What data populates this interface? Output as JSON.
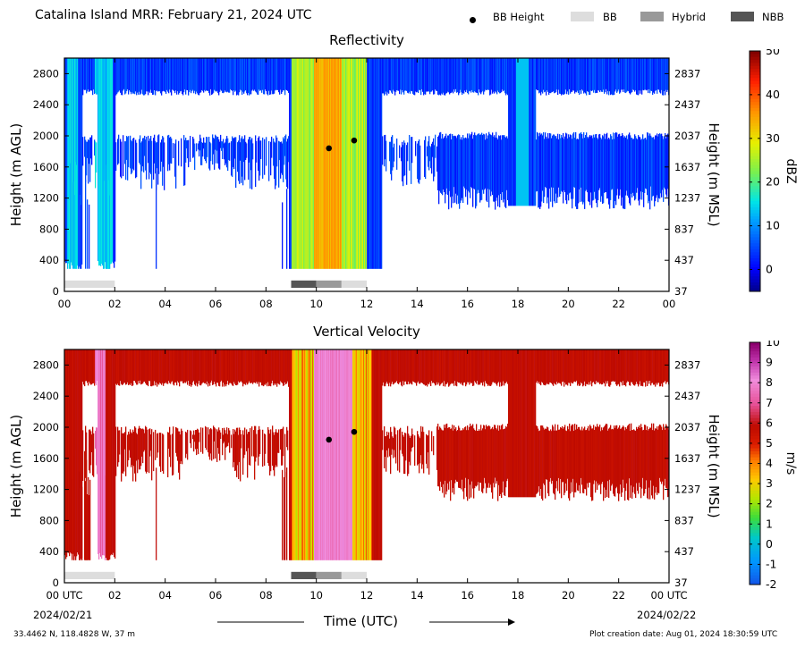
{
  "header": {
    "title": "Catalina Island MRR:  February 21, 2024 UTC",
    "legend": [
      {
        "label": "BB Height",
        "type": "dot",
        "color": "#000000"
      },
      {
        "label": "BB",
        "type": "box",
        "color": "#dddddd"
      },
      {
        "label": "Hybrid",
        "type": "box",
        "color": "#999999"
      },
      {
        "label": "NBB",
        "type": "box",
        "color": "#555555"
      }
    ]
  },
  "footer": {
    "location": "33.4462 N, 118.4828 W, 37 m",
    "creation": "Plot creation date: Aug 01, 2024 18:30:59 UTC",
    "time_label": "Time (UTC)",
    "start_date": "2024/02/21",
    "end_date": "2024/02/22"
  },
  "chart_data": [
    {
      "type": "heatmap",
      "title": "Reflectivity",
      "ylabel": "Height (m AGL)",
      "y2label": "Height (m MSL)",
      "colorbar_label": "dBZ",
      "colorbar_ticks": [
        "50",
        "40",
        "30",
        "20",
        "10",
        "0"
      ],
      "colorbar_range": [
        -5,
        50
      ],
      "xlim": [
        0,
        24
      ],
      "ylim": [
        0,
        3000
      ],
      "x_ticks": [
        "00",
        "02",
        "04",
        "06",
        "08",
        "10",
        "12",
        "14",
        "16",
        "18",
        "20",
        "22",
        "00"
      ],
      "y_ticks": [
        "0",
        "400",
        "800",
        "1200",
        "1600",
        "2000",
        "2400",
        "2800"
      ],
      "y2_ticks": [
        "37",
        "437",
        "837",
        "1237",
        "1637",
        "2037",
        "2437",
        "2837"
      ],
      "bb_height_points": [
        {
          "x": 10.5,
          "y": 1840
        },
        {
          "x": 11.5,
          "y": 1940
        }
      ],
      "bb_type_bars": [
        {
          "start": 0.0,
          "end": 2.0,
          "type": "BB"
        },
        {
          "start": 9.0,
          "end": 10.0,
          "type": "NBB"
        },
        {
          "start": 10.0,
          "end": 11.0,
          "type": "Hybrid"
        },
        {
          "start": 11.0,
          "end": 12.0,
          "type": "BB"
        }
      ]
    },
    {
      "type": "heatmap",
      "title": "Vertical Velocity",
      "ylabel": "Height (m AGL)",
      "y2label": "Height (m MSL)",
      "colorbar_label": "m/s",
      "colorbar_ticks": [
        "10",
        "9",
        "8",
        "7",
        "6",
        "5",
        "4",
        "3",
        "2",
        "1",
        "0",
        "-1",
        "-2"
      ],
      "colorbar_range": [
        -2,
        10
      ],
      "xlim": [
        0,
        24
      ],
      "ylim": [
        0,
        3000
      ],
      "x_ticks": [
        "00 UTC",
        "02",
        "04",
        "06",
        "08",
        "10",
        "12",
        "14",
        "16",
        "18",
        "20",
        "22",
        "00 UTC"
      ],
      "y_ticks": [
        "0",
        "400",
        "800",
        "1200",
        "1600",
        "2000",
        "2400",
        "2800"
      ],
      "y2_ticks": [
        "37",
        "437",
        "837",
        "1237",
        "1637",
        "2037",
        "2437",
        "2837"
      ],
      "bb_height_points": [
        {
          "x": 10.5,
          "y": 1840
        },
        {
          "x": 11.5,
          "y": 1940
        }
      ],
      "bb_type_bars": [
        {
          "start": 0.0,
          "end": 2.0,
          "type": "BB"
        },
        {
          "start": 9.0,
          "end": 10.0,
          "type": "NBB"
        },
        {
          "start": 10.0,
          "end": 11.0,
          "type": "Hybrid"
        },
        {
          "start": 11.0,
          "end": 12.0,
          "type": "BB"
        }
      ]
    }
  ]
}
